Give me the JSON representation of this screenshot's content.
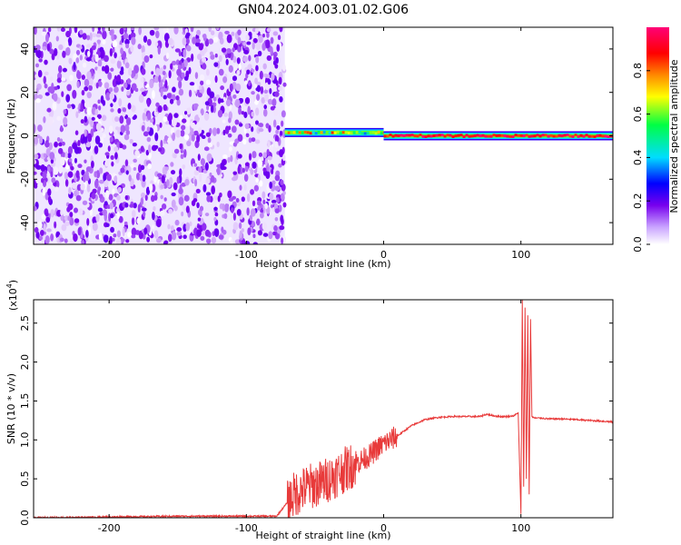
{
  "title": "GN04.2024.003.01.02.G06",
  "chart_data": [
    {
      "type": "heatmap",
      "xlabel": "Height of straight line (km)",
      "ylabel": "Frequency (Hz)",
      "xlim": [
        -255,
        167
      ],
      "ylim": [
        -50,
        50
      ],
      "xticks": [
        -200,
        -100,
        0,
        100
      ],
      "yticks": [
        -40,
        -20,
        0,
        20,
        40
      ],
      "xtick_labels": [
        "-200",
        "-100",
        "0",
        "100"
      ],
      "ytick_labels": [
        "-40",
        "-20",
        "0",
        "20",
        "40"
      ],
      "colorbar": {
        "label": "Normalized spectral amplitude",
        "range": [
          0.0,
          1.0
        ],
        "ticks": [
          0.0,
          0.2,
          0.4,
          0.6,
          0.8
        ],
        "tick_labels": [
          "0.0",
          "0.2",
          "0.4",
          "0.6",
          "0.8"
        ],
        "colormap": [
          "#ffffff",
          "#7700ee",
          "#0000ff",
          "#00ddff",
          "#00ff44",
          "#ffff00",
          "#ff8800",
          "#ff0000",
          "#ff0077"
        ]
      },
      "regions": [
        {
          "x_range": [
            -255,
            -72
          ],
          "description_value": "broadband noise",
          "amplitude_range": [
            0.0,
            0.15
          ],
          "freq_range": [
            -50,
            50
          ]
        },
        {
          "x_range": [
            -72,
            0
          ],
          "description_value": "narrow line near 0 Hz",
          "center_freq": 1.5,
          "amplitude_range": [
            0.3,
            0.85
          ]
        },
        {
          "x_range": [
            0,
            167
          ],
          "description_value": "narrow line at 0 Hz",
          "center_freq": 0,
          "amplitude_range": [
            0.8,
            1.0
          ]
        }
      ]
    },
    {
      "type": "line",
      "xlabel": "Height of straight line (km)",
      "ylabel": "SNR (10 * v/v)",
      "y_multiplier": "(x10",
      "y_multiplier_exp": "4",
      "y_multiplier_close": ")",
      "xlim": [
        -255,
        167
      ],
      "ylim": [
        0.0,
        2.8
      ],
      "xticks": [
        -200,
        -100,
        0,
        100
      ],
      "yticks": [
        0.0,
        0.5,
        1.0,
        1.5,
        2.0,
        2.5
      ],
      "xtick_labels": [
        "-200",
        "-100",
        "0",
        "100"
      ],
      "ytick_labels": [
        "0.0",
        "0.5",
        "1.0",
        "1.5",
        "2.0",
        "2.5"
      ],
      "color": "#e83a3a",
      "series": [
        {
          "x": [
            -255,
            -200,
            -150,
            -100,
            -78,
            -70,
            -65,
            -60,
            -55,
            -50,
            -45,
            -40,
            -35,
            -30,
            -25,
            -20,
            -15,
            -10,
            -5,
            0,
            10,
            20,
            30,
            40,
            50,
            60,
            70,
            75,
            80,
            85,
            90,
            95,
            98,
            100,
            101,
            102,
            103,
            104,
            105,
            106,
            107,
            108,
            110,
            115,
            120,
            130,
            140,
            150,
            160,
            167
          ],
          "y": [
            0.0,
            0.01,
            0.02,
            0.02,
            0.02,
            0.2,
            0.3,
            0.35,
            0.4,
            0.42,
            0.45,
            0.5,
            0.55,
            0.6,
            0.65,
            0.7,
            0.75,
            0.8,
            0.88,
            0.95,
            1.05,
            1.18,
            1.26,
            1.29,
            1.3,
            1.3,
            1.3,
            1.33,
            1.31,
            1.3,
            1.3,
            1.31,
            1.35,
            0.05,
            2.8,
            0.4,
            2.7,
            0.5,
            2.6,
            0.3,
            2.55,
            1.3,
            1.28,
            1.28,
            1.27,
            1.27,
            1.26,
            1.25,
            1.24,
            1.23
          ]
        }
      ],
      "spikes": [
        {
          "x_range": [
            -70,
            -20
          ],
          "amplitude": 0.3
        },
        {
          "x_range": [
            -20,
            10
          ],
          "amplitude": 0.15
        }
      ]
    }
  ]
}
